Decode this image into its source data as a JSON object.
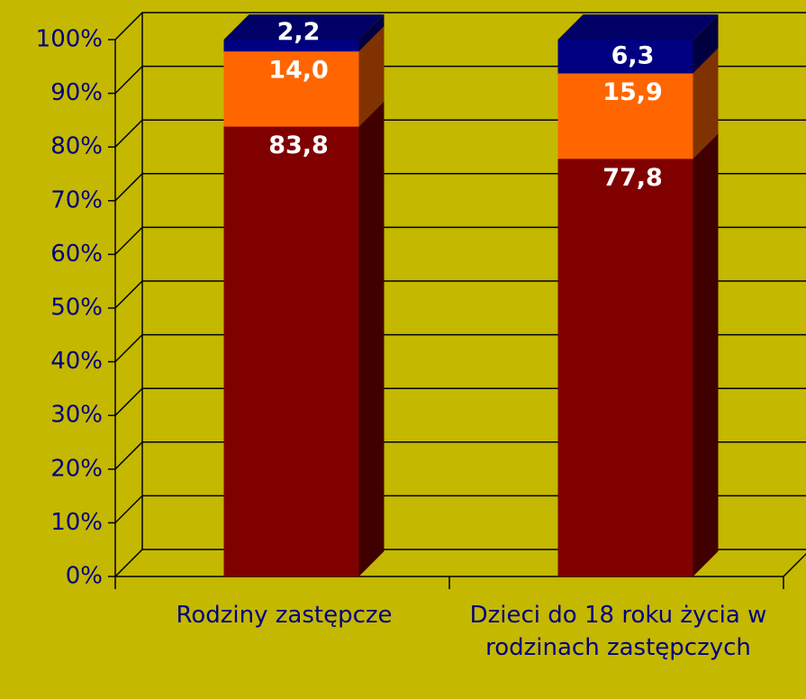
{
  "chart_data": {
    "type": "bar3d_stacked",
    "categories": [
      "Rodziny zastępcze",
      "Dzieci do 18 roku życia w rodzinach zastępczych"
    ],
    "series": [
      {
        "color": "#800000",
        "values": [
          83.8,
          77.8
        ],
        "value_labels": [
          "83,8",
          "77,8"
        ]
      },
      {
        "color": "#ff6600",
        "values": [
          14.0,
          15.9
        ],
        "value_labels": [
          "14,0",
          "15,9"
        ]
      },
      {
        "color": "#000080",
        "values": [
          2.2,
          6.3
        ],
        "value_labels": [
          "2,2",
          "6,3"
        ]
      }
    ],
    "ylim": [
      0,
      100
    ],
    "yticks": [
      {
        "value": 0,
        "label": "0%"
      },
      {
        "value": 10,
        "label": "10%"
      },
      {
        "value": 20,
        "label": "20%"
      },
      {
        "value": 30,
        "label": "30%"
      },
      {
        "value": 40,
        "label": "40%"
      },
      {
        "value": 50,
        "label": "50%"
      },
      {
        "value": 60,
        "label": "60%"
      },
      {
        "value": 70,
        "label": "70%"
      },
      {
        "value": 80,
        "label": "80%"
      },
      {
        "value": 90,
        "label": "90%"
      },
      {
        "value": 100,
        "label": "100%"
      }
    ],
    "grid": true
  }
}
